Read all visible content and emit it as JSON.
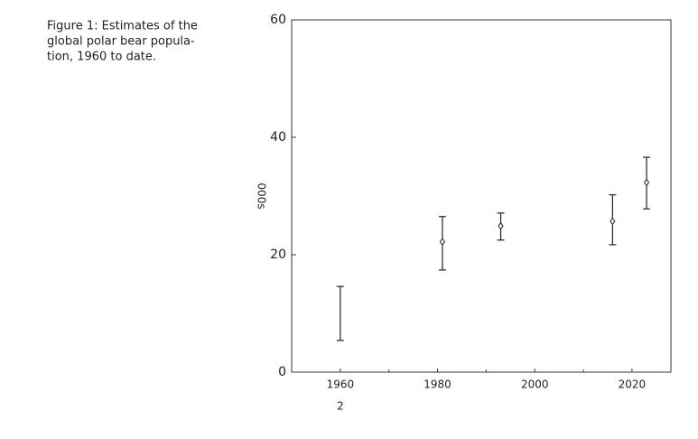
{
  "caption": [
    "Figure 1: Estimates of the",
    "global polar bear popula-",
    "tion, 1960 to date."
  ],
  "page_number": "2",
  "chart_data": {
    "type": "errorbar",
    "ylabel": "000s",
    "x": [
      1960,
      1981,
      1993,
      2016,
      2023
    ],
    "values": [
      null,
      22.2,
      24.9,
      25.7,
      32.3
    ],
    "low": [
      5.4,
      17.4,
      22.5,
      21.7,
      27.8
    ],
    "high": [
      14.6,
      26.5,
      27.1,
      30.2,
      36.6
    ],
    "color": "#222222",
    "xlim": [
      1950,
      2028
    ],
    "xticks": [
      1960,
      1980,
      2000,
      2020
    ],
    "xminor": [
      1970,
      1990,
      2010
    ],
    "ylim": [
      0,
      60
    ],
    "yticks": [
      0,
      20,
      40,
      60
    ]
  }
}
